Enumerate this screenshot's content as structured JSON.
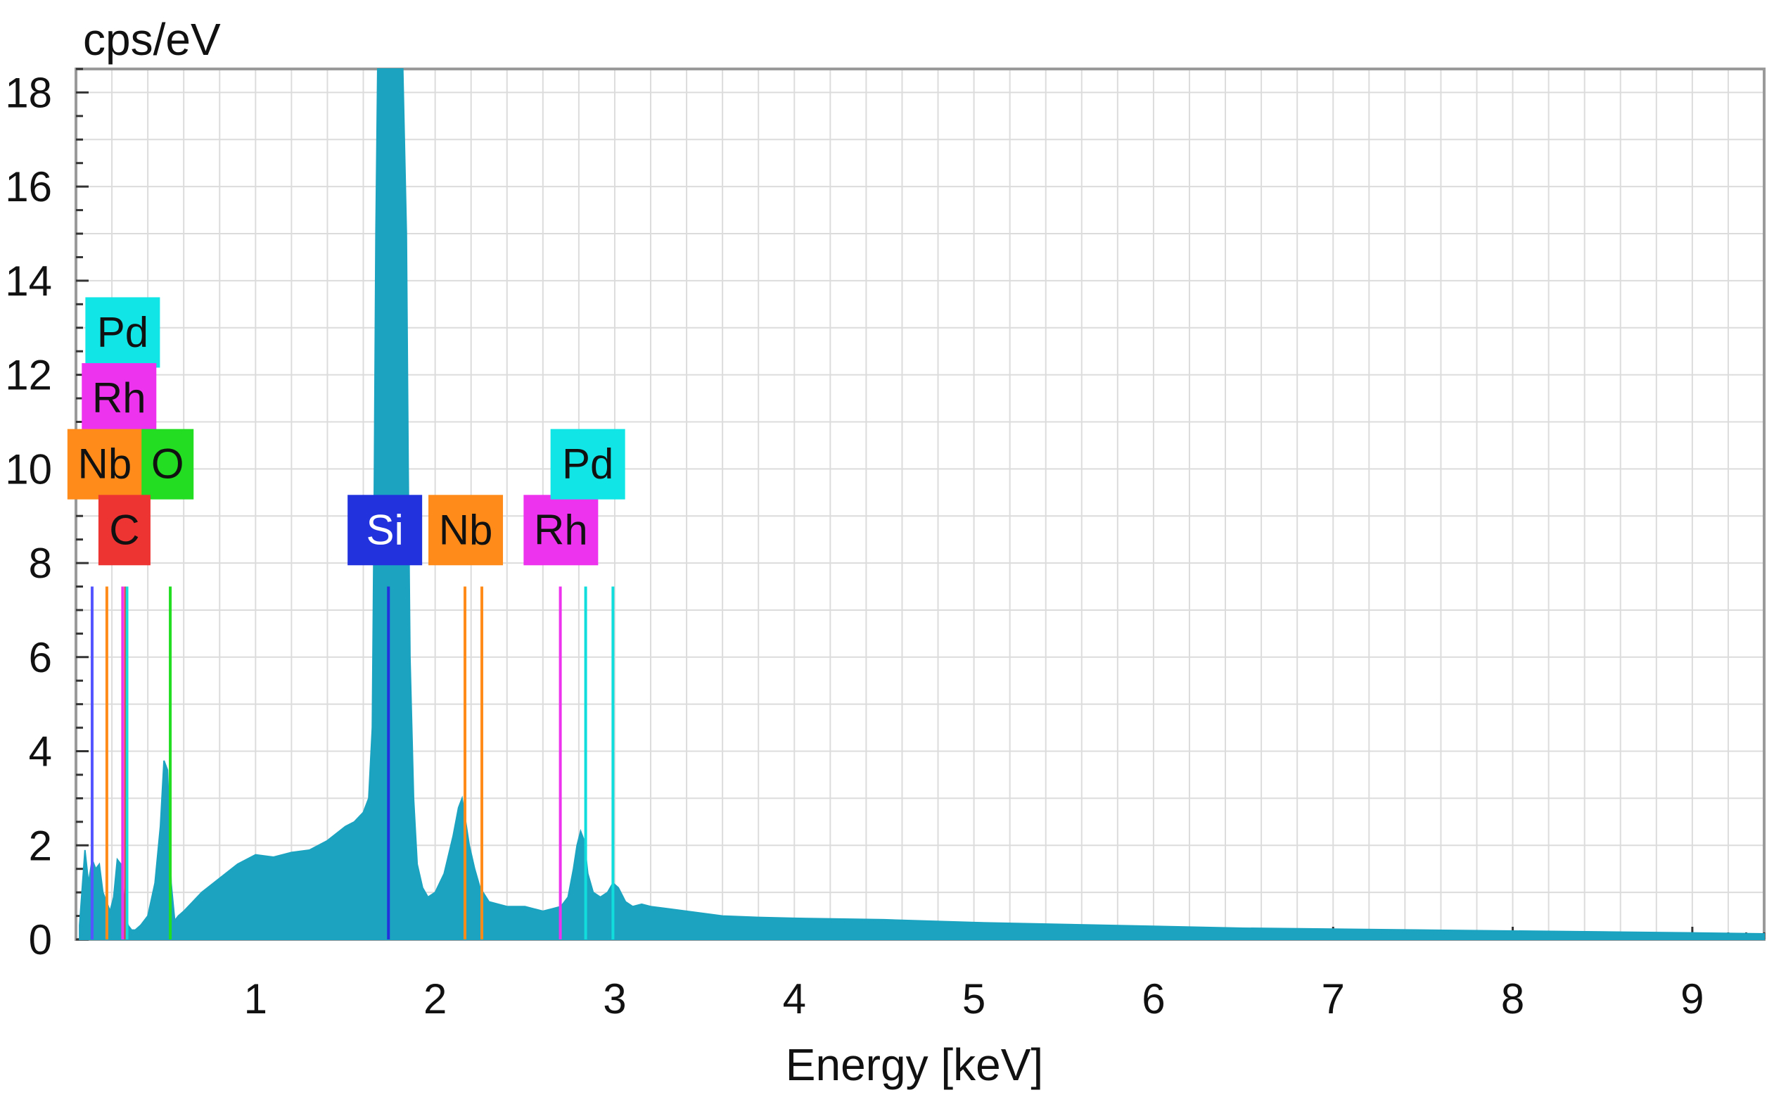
{
  "chart_data": {
    "type": "area",
    "ylabel": "cps/eV",
    "xlabel": "Energy [keV]",
    "xlim": [
      0,
      9.4
    ],
    "ylim": [
      0,
      18.5
    ],
    "x_ticks": [
      1,
      2,
      3,
      4,
      5,
      6,
      7,
      8,
      9
    ],
    "y_ticks": [
      0,
      2,
      4,
      6,
      8,
      10,
      12,
      14,
      16,
      18
    ],
    "grid": true,
    "fill_color": "#1ba3c0",
    "spectrum": {
      "x": [
        0.02,
        0.05,
        0.07,
        0.09,
        0.11,
        0.13,
        0.15,
        0.17,
        0.19,
        0.21,
        0.23,
        0.25,
        0.27,
        0.28,
        0.29,
        0.31,
        0.33,
        0.36,
        0.4,
        0.44,
        0.47,
        0.49,
        0.51,
        0.52,
        0.53,
        0.55,
        0.57,
        0.6,
        0.65,
        0.7,
        0.8,
        0.9,
        1.0,
        1.1,
        1.2,
        1.3,
        1.4,
        1.5,
        1.55,
        1.6,
        1.63,
        1.65,
        1.66,
        1.67,
        1.68,
        1.7,
        1.72,
        1.74,
        1.76,
        1.78,
        1.8,
        1.82,
        1.84,
        1.85,
        1.86,
        1.88,
        1.9,
        1.93,
        1.96,
        2.0,
        2.05,
        2.1,
        2.13,
        2.15,
        2.17,
        2.19,
        2.22,
        2.25,
        2.3,
        2.35,
        2.4,
        2.45,
        2.5,
        2.55,
        2.6,
        2.65,
        2.7,
        2.74,
        2.77,
        2.79,
        2.81,
        2.83,
        2.85,
        2.88,
        2.92,
        2.96,
        2.99,
        3.02,
        3.06,
        3.1,
        3.15,
        3.2,
        3.3,
        3.4,
        3.5,
        3.6,
        3.8,
        4.0,
        4.5,
        5.0,
        5.5,
        6.0,
        6.5,
        7.0,
        7.5,
        8.0,
        8.5,
        9.0,
        9.4
      ],
      "y": [
        0.3,
        1.9,
        1.2,
        1.7,
        1.5,
        1.6,
        1.0,
        0.8,
        0.6,
        0.9,
        1.7,
        1.6,
        0.8,
        0.5,
        0.3,
        0.2,
        0.2,
        0.3,
        0.5,
        1.2,
        2.4,
        3.8,
        3.6,
        2.5,
        1.2,
        0.4,
        0.5,
        0.6,
        0.8,
        1.0,
        1.3,
        1.6,
        1.8,
        1.75,
        1.85,
        1.9,
        2.1,
        2.4,
        2.5,
        2.7,
        3.0,
        4.5,
        9.0,
        15.0,
        18.5,
        18.5,
        18.5,
        18.5,
        18.5,
        18.5,
        18.5,
        18.5,
        15.0,
        10.0,
        6.0,
        3.0,
        1.6,
        1.1,
        0.9,
        1.0,
        1.4,
        2.2,
        2.8,
        3.0,
        2.5,
        2.0,
        1.5,
        1.1,
        0.8,
        0.75,
        0.7,
        0.7,
        0.7,
        0.65,
        0.6,
        0.65,
        0.7,
        0.9,
        1.5,
        2.0,
        2.3,
        2.1,
        1.4,
        1.0,
        0.9,
        1.0,
        1.2,
        1.1,
        0.8,
        0.7,
        0.75,
        0.7,
        0.65,
        0.6,
        0.55,
        0.5,
        0.47,
        0.45,
        0.42,
        0.36,
        0.32,
        0.28,
        0.24,
        0.22,
        0.2,
        0.18,
        0.16,
        0.14,
        0.12
      ]
    },
    "element_lines": [
      {
        "element": "C",
        "energy": 0.277,
        "color": "#ee3333"
      },
      {
        "element": "O",
        "energy": 0.525,
        "color": "#22dd22"
      },
      {
        "element": "Si",
        "energy": 1.74,
        "color": "#2233dd"
      },
      {
        "element": "Nb",
        "energy": 0.172,
        "color": "#ff8c1a"
      },
      {
        "element": "Nb",
        "energy": 2.166,
        "color": "#ff8c1a"
      },
      {
        "element": "Nb",
        "energy": 2.26,
        "color": "#ff8c1a"
      },
      {
        "element": "Rh",
        "energy": 0.26,
        "color": "#ee33ee"
      },
      {
        "element": "Rh",
        "energy": 2.697,
        "color": "#ee33ee"
      },
      {
        "element": "Pd",
        "energy": 0.284,
        "color": "#11dddd"
      },
      {
        "element": "Pd",
        "energy": 2.838,
        "color": "#11dddd"
      },
      {
        "element": "Pd",
        "energy": 2.99,
        "color": "#11dddd"
      },
      {
        "element": "",
        "energy": 0.09,
        "color": "#5555ff"
      }
    ],
    "element_labels": [
      {
        "text": "Pd",
        "energy": 0.26,
        "level": 12.9,
        "color": "#11e5e5"
      },
      {
        "text": "Rh",
        "energy": 0.24,
        "level": 11.5,
        "color": "#ee33ee"
      },
      {
        "text": "Nb",
        "energy": 0.16,
        "level": 10.1,
        "color": "#ff8c1a"
      },
      {
        "text": "O",
        "energy": 0.51,
        "level": 10.1,
        "color": "#22dd22"
      },
      {
        "text": "C",
        "energy": 0.27,
        "level": 8.7,
        "color": "#ee3333"
      },
      {
        "text": "Si",
        "energy": 1.72,
        "level": 8.7,
        "color": "#2233dd"
      },
      {
        "text": "Nb",
        "energy": 2.17,
        "level": 8.7,
        "color": "#ff8c1a"
      },
      {
        "text": "Rh",
        "energy": 2.7,
        "level": 8.7,
        "color": "#ee33ee"
      },
      {
        "text": "Pd",
        "energy": 2.85,
        "level": 10.1,
        "color": "#11e5e5"
      }
    ]
  }
}
